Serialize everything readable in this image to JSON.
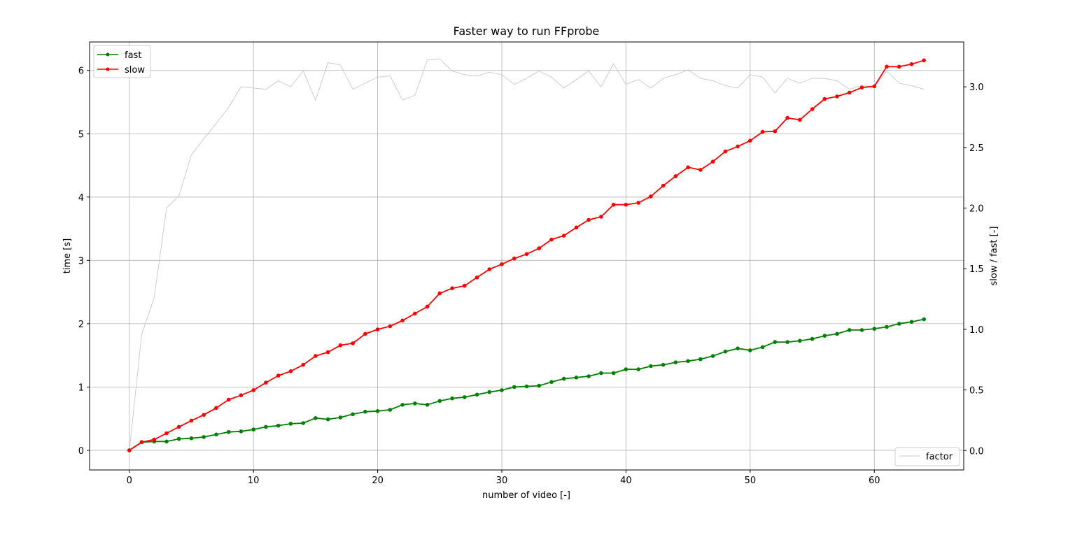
{
  "chart_data": {
    "type": "line",
    "title": "Faster way to run FFprobe",
    "xlabel": "number of video [-]",
    "ylabel": "time [s]",
    "y2label": "slow / fast [-]",
    "xlim": [
      -3.2,
      67.2
    ],
    "ylim": [
      -0.31,
      6.45
    ],
    "y2lim": [
      -0.16,
      3.37
    ],
    "xticks": [
      0,
      10,
      20,
      30,
      40,
      50,
      60
    ],
    "yticks": [
      0,
      1,
      2,
      3,
      4,
      5,
      6
    ],
    "y2ticks": [
      0.0,
      0.5,
      1.0,
      1.5,
      2.0,
      2.5,
      3.0
    ],
    "y2tick_labels": [
      "0.0",
      "0.5",
      "1.0",
      "1.5",
      "2.0",
      "2.5",
      "3.0"
    ],
    "grid": true,
    "legend_left_placement": "top-left",
    "legend_right_placement": "bottom-right",
    "x": [
      0,
      1,
      2,
      3,
      4,
      5,
      6,
      7,
      8,
      9,
      10,
      11,
      12,
      13,
      14,
      15,
      16,
      17,
      18,
      19,
      20,
      21,
      22,
      23,
      24,
      25,
      26,
      27,
      28,
      29,
      30,
      31,
      32,
      33,
      34,
      35,
      36,
      37,
      38,
      39,
      40,
      41,
      42,
      43,
      44,
      45,
      46,
      47,
      48,
      49,
      50,
      51,
      52,
      53,
      54,
      55,
      56,
      57,
      58,
      59,
      60,
      61,
      62,
      63,
      64
    ],
    "series": [
      {
        "name": "fast",
        "axis": "left",
        "color": "#008000",
        "marker": true,
        "values": [
          0.0,
          0.13,
          0.14,
          0.14,
          0.18,
          0.19,
          0.21,
          0.25,
          0.29,
          0.3,
          0.33,
          0.37,
          0.39,
          0.42,
          0.43,
          0.51,
          0.49,
          0.52,
          0.57,
          0.61,
          0.62,
          0.64,
          0.72,
          0.74,
          0.72,
          0.78,
          0.82,
          0.84,
          0.88,
          0.92,
          0.95,
          1.0,
          1.01,
          1.02,
          1.08,
          1.13,
          1.15,
          1.17,
          1.22,
          1.22,
          1.28,
          1.28,
          1.33,
          1.35,
          1.39,
          1.41,
          1.44,
          1.49,
          1.56,
          1.61,
          1.58,
          1.63,
          1.71,
          1.71,
          1.73,
          1.76,
          1.81,
          1.84,
          1.9,
          1.9,
          1.92,
          1.95,
          2.0,
          2.03,
          2.07
        ]
      },
      {
        "name": "slow",
        "axis": "left",
        "color": "#ff0000",
        "marker": true,
        "values": [
          0.0,
          0.13,
          0.17,
          0.27,
          0.37,
          0.47,
          0.56,
          0.67,
          0.8,
          0.87,
          0.95,
          1.07,
          1.18,
          1.25,
          1.35,
          1.49,
          1.55,
          1.66,
          1.69,
          1.84,
          1.91,
          1.96,
          2.05,
          2.16,
          2.27,
          2.48,
          2.56,
          2.6,
          2.73,
          2.86,
          2.94,
          3.03,
          3.1,
          3.19,
          3.33,
          3.39,
          3.52,
          3.64,
          3.69,
          3.88,
          3.88,
          3.91,
          4.01,
          4.18,
          4.33,
          4.47,
          4.43,
          4.56,
          4.72,
          4.8,
          4.89,
          5.03,
          5.04,
          5.25,
          5.22,
          5.39,
          5.55,
          5.59,
          5.65,
          5.73,
          5.75,
          6.06,
          6.06,
          6.1,
          6.16
        ]
      },
      {
        "name": "factor",
        "axis": "right",
        "color": "#c8c8c8",
        "marker": false,
        "values": [
          0.0,
          0.96,
          1.26,
          2.0,
          2.1,
          2.44,
          2.57,
          2.7,
          2.83,
          3.0,
          2.99,
          2.98,
          3.05,
          3.0,
          3.13,
          2.89,
          3.2,
          3.18,
          2.98,
          3.03,
          3.08,
          3.09,
          2.89,
          2.93,
          3.22,
          3.23,
          3.13,
          3.1,
          3.09,
          3.12,
          3.1,
          3.02,
          3.07,
          3.13,
          3.08,
          2.99,
          3.06,
          3.13,
          3.0,
          3.19,
          3.02,
          3.06,
          2.99,
          3.07,
          3.1,
          3.14,
          3.07,
          3.05,
          3.01,
          2.99,
          3.1,
          3.08,
          2.95,
          3.07,
          3.03,
          3.07,
          3.07,
          3.05,
          2.98,
          3.01,
          3.0,
          3.13,
          3.03,
          3.01,
          2.98
        ]
      }
    ]
  }
}
